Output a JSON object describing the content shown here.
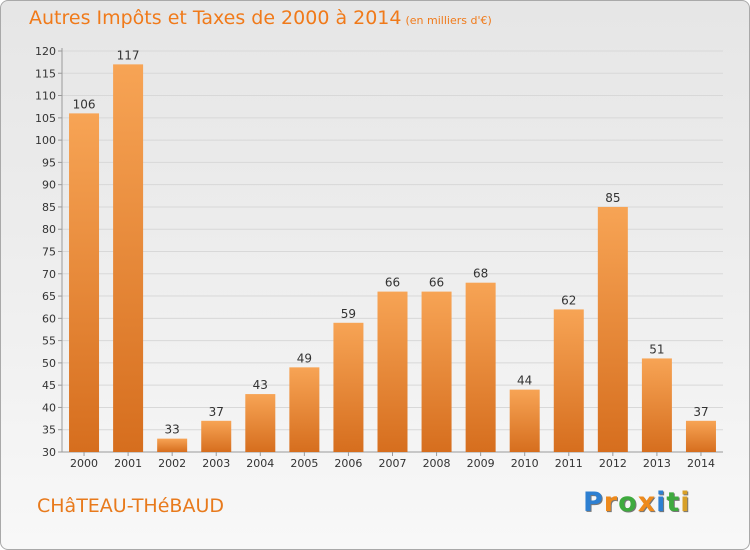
{
  "header": {
    "title": "Autres Impôts et Taxes de 2000 à 2014",
    "unit": "(en milliers d'€)"
  },
  "footer": {
    "city": "CHâTEAU-THéBAUD"
  },
  "brand": {
    "letters": [
      "P",
      "r",
      "o",
      "x",
      "i",
      "t",
      "i"
    ],
    "colors": [
      "#2d7fd1",
      "#ee8a1c",
      "#3eaa3e",
      "#ee8a1c",
      "#2d7fd1",
      "#3eaa3e",
      "#d8a028"
    ]
  },
  "colors": {
    "bar_light": "#f7a455",
    "bar_dark": "#d66e1e",
    "axis": "#9a9a9a",
    "grid": "#d8d8d8",
    "text": "#333333"
  },
  "chart_data": {
    "type": "bar",
    "title": "Autres Impôts et Taxes de 2000 à 2014",
    "subtitle": "(en milliers d'€)",
    "categories": [
      "2000",
      "2001",
      "2002",
      "2003",
      "2004",
      "2005",
      "2006",
      "2007",
      "2008",
      "2009",
      "2010",
      "2011",
      "2012",
      "2013",
      "2014"
    ],
    "values": [
      106,
      117,
      33,
      37,
      43,
      49,
      59,
      66,
      66,
      68,
      44,
      62,
      85,
      51,
      37
    ],
    "ylim": [
      30,
      120
    ],
    "yticks": [
      30,
      35,
      40,
      45,
      50,
      55,
      60,
      65,
      70,
      75,
      80,
      85,
      90,
      95,
      100,
      105,
      110,
      115,
      120
    ],
    "grid": true,
    "data_labels": true
  }
}
